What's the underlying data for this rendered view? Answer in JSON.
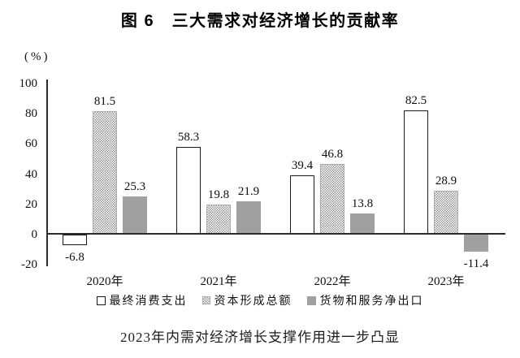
{
  "chart_data": {
    "type": "bar",
    "title": "图 6　三大需求对经济增长的贡献率",
    "unit_label": "(%)",
    "categories": [
      "2020年",
      "2021年",
      "2022年",
      "2023年"
    ],
    "series": [
      {
        "name": "最终消费支出",
        "style": "outline",
        "values": [
          -6.8,
          58.3,
          39.4,
          82.5
        ]
      },
      {
        "name": "资本形成总额",
        "style": "dotted",
        "values": [
          81.5,
          19.8,
          46.8,
          28.9
        ]
      },
      {
        "name": "货物和服务净出口",
        "style": "solid",
        "values": [
          25.3,
          21.9,
          13.8,
          -11.4
        ]
      }
    ],
    "ylim": [
      -20,
      100
    ],
    "yticks": [
      100,
      80,
      60,
      40,
      20,
      0,
      -20
    ],
    "grid": false,
    "value_labels": true,
    "legend_position": "bottom",
    "caption": "2023年内需对经济增长支撑作用进一步凸显",
    "colors": {
      "outline_fill": "#ffffff",
      "outline_border": "#1a1a1a",
      "dotted_dot": "#999999",
      "dotted_bg": "#ffffff",
      "solid_fill": "#a0a0a0",
      "axis": "#2b2b2b",
      "text": "#111111"
    }
  }
}
